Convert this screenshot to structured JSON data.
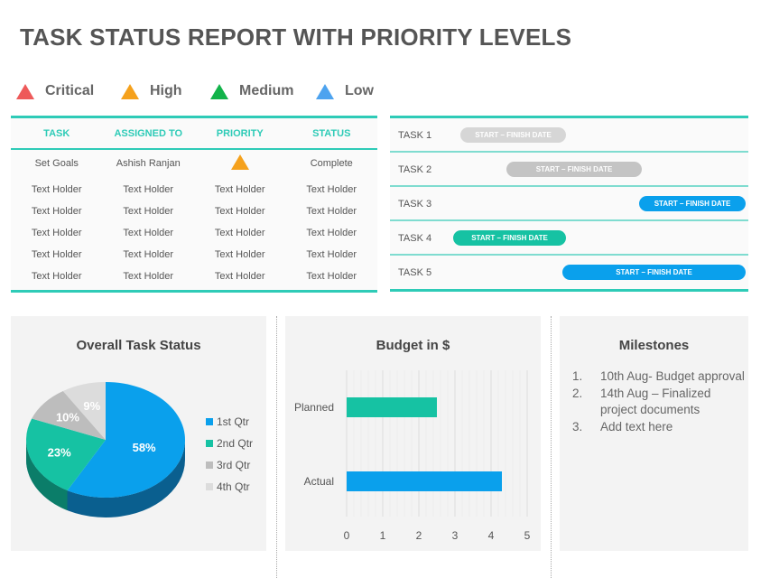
{
  "title": "TASK STATUS REPORT WITH PRIORITY LEVELS",
  "legend": [
    {
      "label": "Critical",
      "color": "#ee5a5a"
    },
    {
      "label": "High",
      "color": "#f5a11c"
    },
    {
      "label": "Medium",
      "color": "#12b34a"
    },
    {
      "label": "Low",
      "color": "#4da3ef"
    }
  ],
  "table": {
    "headers": [
      "TASK",
      "ASSIGNED TO",
      "PRIORITY",
      "STATUS"
    ],
    "first_row": {
      "task": "Set Goals",
      "assigned": "Ashish  Ranjan",
      "priority": "High",
      "status": "Complete"
    },
    "rows": [
      [
        "Text Holder",
        "Text Holder",
        "Text Holder",
        "Text Holder"
      ],
      [
        "Text Holder",
        "Text Holder",
        "Text Holder",
        "Text Holder"
      ],
      [
        "Text Holder",
        "Text Holder",
        "Text Holder",
        "Text Holder"
      ],
      [
        "Text Holder",
        "Text Holder",
        "Text Holder",
        "Text Holder"
      ],
      [
        "Text Holder",
        "Text Holder",
        "Text Holder",
        "Text Holder"
      ]
    ]
  },
  "gantt": [
    {
      "task": "TASK 1",
      "bar": "START – FINISH DATE",
      "color": "#d6d6d6"
    },
    {
      "task": "TASK 2",
      "bar": "START – FINISH DATE",
      "color": "#c4c4c4"
    },
    {
      "task": "TASK 3",
      "bar": "START – FINISH DATE",
      "color": "#0aa0ec"
    },
    {
      "task": "TASK 4",
      "bar": "START – FINISH DATE",
      "color": "#16c2a3"
    },
    {
      "task": "TASK 5",
      "bar": "START – FINISH DATE",
      "color": "#0aa0ec"
    }
  ],
  "chart_data": [
    {
      "type": "pie",
      "title": "Overall Task Status",
      "categories": [
        "1st Qtr",
        "2nd Qtr",
        "3rd Qtr",
        "4th Qtr"
      ],
      "values": [
        58,
        23,
        10,
        9
      ],
      "labels": [
        "58%",
        "23%",
        "10%",
        "9%"
      ],
      "colors": [
        "#0aa0ec",
        "#16c2a3",
        "#bdbdbd",
        "#dcdcdc"
      ],
      "legend": "right"
    },
    {
      "type": "bar",
      "orientation": "horizontal",
      "title": "Budget in $",
      "categories": [
        "Planned",
        "Actual"
      ],
      "values": [
        2.5,
        4.3
      ],
      "colors": [
        "#16c2a3",
        "#0aa0ec"
      ],
      "xlim": [
        0,
        5
      ],
      "xticks": [
        "0",
        "1",
        "2",
        "3",
        "4",
        "5"
      ],
      "grid": true
    }
  ],
  "milestones": {
    "title": "Milestones",
    "items": [
      {
        "num": "1.",
        "text": "10th Aug- Budget approval"
      },
      {
        "num": "2.",
        "text": "14th Aug – Finalized project documents"
      },
      {
        "num": "3.",
        "text": "Add text here"
      }
    ]
  }
}
